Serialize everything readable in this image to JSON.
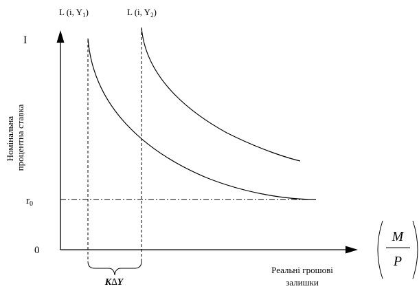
{
  "curves": {
    "curve1_label": "L (i, Y",
    "curve1_sub": "1",
    "curve2_label": "L (i, Y",
    "curve2_sub": "2",
    "label_close": ")"
  },
  "axes": {
    "y_top_label": "I",
    "y_title_line1": "Номінальна",
    "y_title_line2": "процентна ставка",
    "r0_main": "r",
    "r0_sub": "0",
    "origin": "0",
    "x_title_line1": "Реальні грошові",
    "x_title_line2": "залишки",
    "fraction_numerator": "M",
    "fraction_denominator": "P"
  },
  "annotation": {
    "brace_kappa": "K",
    "brace_delta": "∆",
    "brace_var": "Y"
  }
}
